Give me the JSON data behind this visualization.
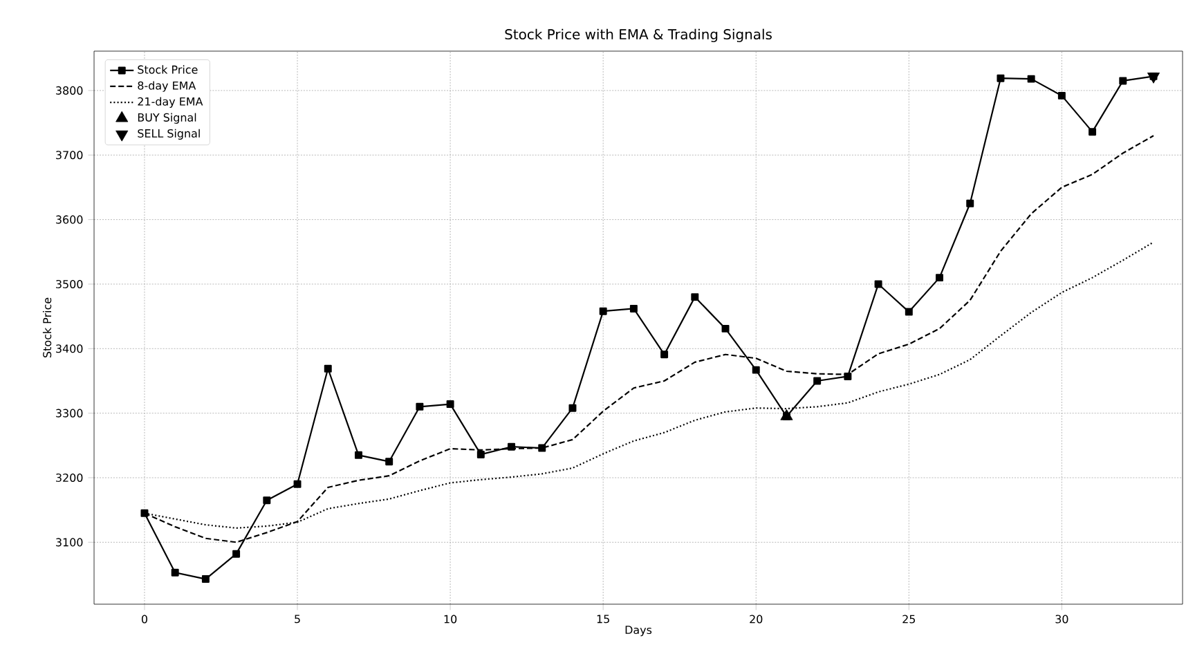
{
  "chart_data": {
    "type": "line",
    "title": "Stock Price with EMA & Trading Signals",
    "xlabel": "Days",
    "ylabel": "Stock Price",
    "x": [
      0,
      1,
      2,
      3,
      4,
      5,
      6,
      7,
      8,
      9,
      10,
      11,
      12,
      13,
      14,
      15,
      16,
      17,
      18,
      19,
      20,
      21,
      22,
      23,
      24,
      25,
      26,
      27,
      28,
      29,
      30,
      31,
      32,
      33
    ],
    "series": [
      {
        "name": "Stock Price",
        "color": "#000000",
        "marker": "square",
        "line_style": "solid",
        "values": [
          3145,
          3053,
          3043,
          3082,
          3165,
          3190,
          3369,
          3235,
          3225,
          3310,
          3314,
          3236,
          3248,
          3246,
          3308,
          3458,
          3462,
          3391,
          3480,
          3431,
          3367,
          3295,
          3350,
          3357,
          3500,
          3457,
          3510,
          3625,
          3819,
          3818,
          3792,
          3736,
          3815,
          3822
        ]
      },
      {
        "name": "8-day EMA",
        "color": "#000000",
        "marker": "none",
        "line_style": "dashed",
        "values": [
          3145,
          3124,
          3106,
          3100,
          3115,
          3132,
          3185,
          3196,
          3203,
          3226,
          3245,
          3243,
          3245,
          3246,
          3259,
          3303,
          3339,
          3350,
          3379,
          3391,
          3385,
          3365,
          3361,
          3360,
          3392,
          3407,
          3431,
          3475,
          3551,
          3609,
          3650,
          3670,
          3703,
          3730
        ]
      },
      {
        "name": "21-day EMA",
        "color": "#000000",
        "marker": "none",
        "line_style": "dotted",
        "values": [
          3145,
          3136,
          3127,
          3122,
          3125,
          3131,
          3152,
          3160,
          3167,
          3180,
          3192,
          3197,
          3201,
          3206,
          3215,
          3237,
          3257,
          3270,
          3289,
          3302,
          3308,
          3307,
          3310,
          3316,
          3333,
          3345,
          3360,
          3383,
          3420,
          3456,
          3487,
          3510,
          3537,
          3565
        ]
      },
      {
        "name": "BUY Signal",
        "type": "scatter",
        "color": "#000000",
        "marker": "triangle",
        "x": [
          21
        ],
        "values": [
          3295
        ]
      },
      {
        "name": "SELL Signal",
        "type": "scatter",
        "color": "#000000",
        "marker": "triangle-down",
        "x": [
          33
        ],
        "values": [
          3822
        ]
      }
    ],
    "xlim": [
      -1.65,
      33.95
    ],
    "ylim": [
      3004,
      3861
    ],
    "xticks": [
      0,
      5,
      10,
      15,
      20,
      25,
      30
    ],
    "yticks": [
      3100,
      3200,
      3300,
      3400,
      3500,
      3600,
      3700,
      3800
    ],
    "grid": true,
    "legend": "top left"
  }
}
